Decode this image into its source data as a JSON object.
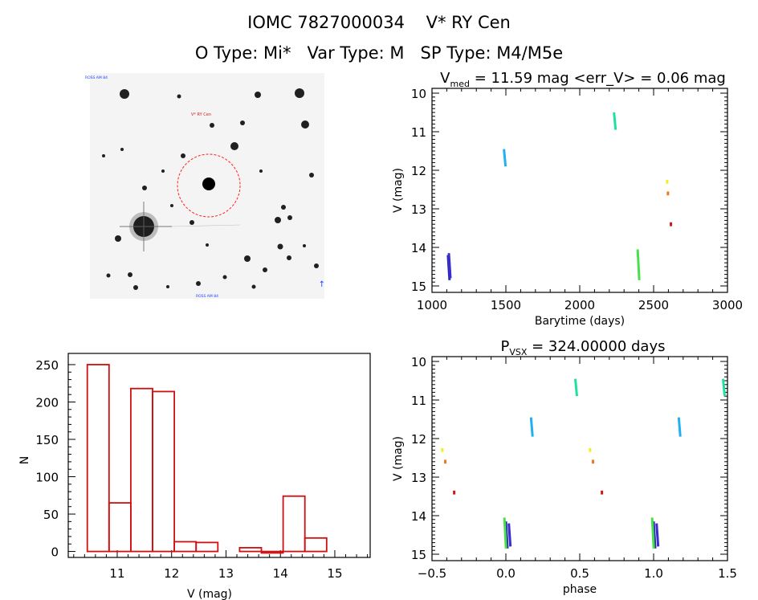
{
  "header": {
    "title": "IOMC 7827000034    V* RY Cen",
    "subtitle": "O Type: Mi*   Var Type: M   SP Type: M4/M5e"
  },
  "finder": {
    "top_left_label": "ROSS AM 84",
    "star_label": "V* RY Cen",
    "bottom_label": "ROSS AM 84",
    "arrow_symbol": "↑",
    "colors": {
      "circle": "#ff2020",
      "labels": "#2040ff"
    }
  },
  "chart_data": [
    {
      "id": "lightcurve",
      "type": "scatter",
      "title_main": "V",
      "title_sub": "med",
      "title_rest": " = 11.59 mag <err_V> = 0.06 mag",
      "xlabel": "Barytime (days)",
      "ylabel": "V (mag)",
      "xlim": [
        1000,
        3000
      ],
      "ylim": [
        15,
        10
      ],
      "xticks": [
        1000,
        1500,
        2000,
        2500,
        3000
      ],
      "yticks": [
        10,
        11,
        12,
        13,
        14,
        15
      ],
      "series": [
        {
          "name": "seg1a",
          "color": "#2828b4",
          "x": 1108,
          "y_start": 14.2,
          "y_end": 14.85
        },
        {
          "name": "seg1b",
          "color": "#3a2cd0",
          "x": 1114,
          "y_start": 14.15,
          "y_end": 14.8
        },
        {
          "name": "seg2",
          "color": "#20b0f0",
          "x": 1487,
          "y_start": 11.45,
          "y_end": 11.9
        },
        {
          "name": "seg3",
          "color": "#20e0a0",
          "x": 2232,
          "y_start": 10.5,
          "y_end": 10.95
        },
        {
          "name": "seg4",
          "color": "#48e048",
          "x": 2392,
          "y_start": 14.05,
          "y_end": 14.85
        },
        {
          "name": "seg5",
          "color": "#f0f020",
          "x": 2592,
          "y_start": 12.25,
          "y_end": 12.35
        },
        {
          "name": "seg6",
          "color": "#f07820",
          "x": 2597,
          "y_start": 12.55,
          "y_end": 12.65
        },
        {
          "name": "seg7",
          "color": "#d01818",
          "x": 2617,
          "y_start": 13.35,
          "y_end": 13.45
        }
      ]
    },
    {
      "id": "histogram",
      "type": "bar",
      "xlabel": "V (mag)",
      "ylabel": "N",
      "xlim": [
        10.1,
        15.65
      ],
      "ylim": [
        -8,
        265
      ],
      "xticks": [
        11,
        12,
        13,
        14,
        15
      ],
      "yticks": [
        0,
        50,
        100,
        150,
        200,
        250
      ],
      "bar_color": "#d01010",
      "bins": [
        {
          "left": 10.45,
          "right": 10.85,
          "value": 250
        },
        {
          "left": 10.85,
          "right": 11.25,
          "value": 65
        },
        {
          "left": 11.25,
          "right": 11.65,
          "value": 218
        },
        {
          "left": 11.65,
          "right": 12.05,
          "value": 214
        },
        {
          "left": 12.05,
          "right": 12.45,
          "value": 13
        },
        {
          "left": 12.45,
          "right": 12.85,
          "value": 12
        },
        {
          "left": 12.85,
          "right": 13.25,
          "value": 0
        },
        {
          "left": 13.25,
          "right": 13.65,
          "value": 5
        },
        {
          "left": 13.65,
          "right": 14.05,
          "value": -2
        },
        {
          "left": 14.05,
          "right": 14.45,
          "value": 74
        },
        {
          "left": 14.45,
          "right": 14.85,
          "value": 18
        }
      ]
    },
    {
      "id": "phased",
      "type": "scatter",
      "title_main": "P",
      "title_sub": "VSX",
      "title_rest": " = 324.00000 days",
      "xlabel": "phase",
      "ylabel": "V (mag)",
      "xlim": [
        -0.5,
        1.5
      ],
      "ylim": [
        15,
        10
      ],
      "xticks": [
        -0.5,
        0.0,
        0.5,
        1.0,
        1.5
      ],
      "xtick_labels": [
        "−0.5",
        "0.0",
        "0.5",
        "1.0",
        "1.5"
      ],
      "yticks": [
        10,
        11,
        12,
        13,
        14,
        15
      ],
      "series": [
        {
          "name": "p1a",
          "color": "#2828b4",
          "x": 0.0,
          "y_start": 14.15,
          "y_end": 14.85
        },
        {
          "name": "p1b",
          "color": "#3a2cd0",
          "x": 0.02,
          "y_start": 14.2,
          "y_end": 14.8
        },
        {
          "name": "p1c",
          "color": "#2828b4",
          "x": 1.0,
          "y_start": 14.15,
          "y_end": 14.85
        },
        {
          "name": "p1d",
          "color": "#3a2cd0",
          "x": 1.02,
          "y_start": 14.2,
          "y_end": 14.8
        },
        {
          "name": "p2a",
          "color": "#20b0f0",
          "x": 0.17,
          "y_start": 11.45,
          "y_end": 11.95
        },
        {
          "name": "p2b",
          "color": "#20b0f0",
          "x": 1.17,
          "y_start": 11.45,
          "y_end": 11.95
        },
        {
          "name": "p3a",
          "color": "#20e0a0",
          "x": 0.47,
          "y_start": 10.45,
          "y_end": 10.9
        },
        {
          "name": "p3b",
          "color": "#20e0a0",
          "x": 1.47,
          "y_start": 10.45,
          "y_end": 10.9
        },
        {
          "name": "p4a",
          "color": "#48e048",
          "x": -0.01,
          "y_start": 14.05,
          "y_end": 14.85
        },
        {
          "name": "p4b",
          "color": "#48e048",
          "x": 0.99,
          "y_start": 14.05,
          "y_end": 14.85
        },
        {
          "name": "p5a",
          "color": "#f0f020",
          "x": -0.43,
          "y_start": 12.25,
          "y_end": 12.35
        },
        {
          "name": "p5b",
          "color": "#f0f020",
          "x": 0.57,
          "y_start": 12.25,
          "y_end": 12.35
        },
        {
          "name": "p6a",
          "color": "#f07820",
          "x": -0.41,
          "y_start": 12.55,
          "y_end": 12.65
        },
        {
          "name": "p6b",
          "color": "#f07820",
          "x": 0.59,
          "y_start": 12.55,
          "y_end": 12.65
        },
        {
          "name": "p7a",
          "color": "#d01818",
          "x": -0.35,
          "y_start": 13.35,
          "y_end": 13.45
        },
        {
          "name": "p7b",
          "color": "#d01818",
          "x": 0.65,
          "y_start": 13.35,
          "y_end": 13.45
        }
      ]
    }
  ]
}
